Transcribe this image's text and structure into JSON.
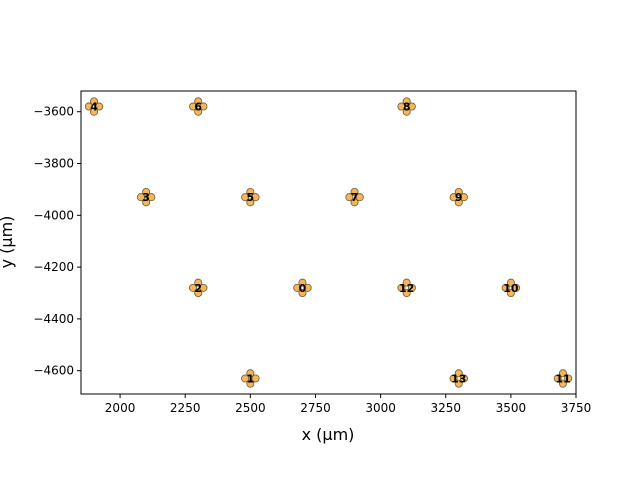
{
  "chart_data": {
    "type": "scatter",
    "title": "",
    "xlabel": "x (μm)",
    "ylabel": "y (μm)",
    "xlim": [
      1850,
      3750
    ],
    "ylim": [
      -4690,
      -3520
    ],
    "xticks": [
      2000,
      2250,
      2500,
      2750,
      3000,
      3250,
      3500,
      3750
    ],
    "yticks": [
      -3600,
      -3800,
      -4000,
      -4200,
      -4400,
      -4600
    ],
    "xtick_labels": [
      "2000",
      "2250",
      "2500",
      "2750",
      "3000",
      "3250",
      "3500",
      "3750"
    ],
    "ytick_labels": [
      "−3600",
      "−3800",
      "−4000",
      "−4200",
      "−4400",
      "−4600"
    ],
    "grid": false,
    "marker_color": "#f5b55b",
    "marker_edge_color": "#6b5a2e",
    "electrode_offset": 20,
    "sites": [
      {
        "label": "0",
        "x": 2700,
        "y": -4280
      },
      {
        "label": "1",
        "x": 2500,
        "y": -4630
      },
      {
        "label": "2",
        "x": 2300,
        "y": -4280
      },
      {
        "label": "3",
        "x": 2100,
        "y": -3930
      },
      {
        "label": "4",
        "x": 1900,
        "y": -3580
      },
      {
        "label": "5",
        "x": 2500,
        "y": -3930
      },
      {
        "label": "6",
        "x": 2300,
        "y": -3580
      },
      {
        "label": "7",
        "x": 2900,
        "y": -3930
      },
      {
        "label": "8",
        "x": 3100,
        "y": -3580
      },
      {
        "label": "9",
        "x": 3300,
        "y": -3930
      },
      {
        "label": "10",
        "x": 3500,
        "y": -4280
      },
      {
        "label": "11",
        "x": 3700,
        "y": -4630
      },
      {
        "label": "12",
        "x": 3100,
        "y": -4280
      },
      {
        "label": "13",
        "x": 3300,
        "y": -4630
      }
    ]
  }
}
